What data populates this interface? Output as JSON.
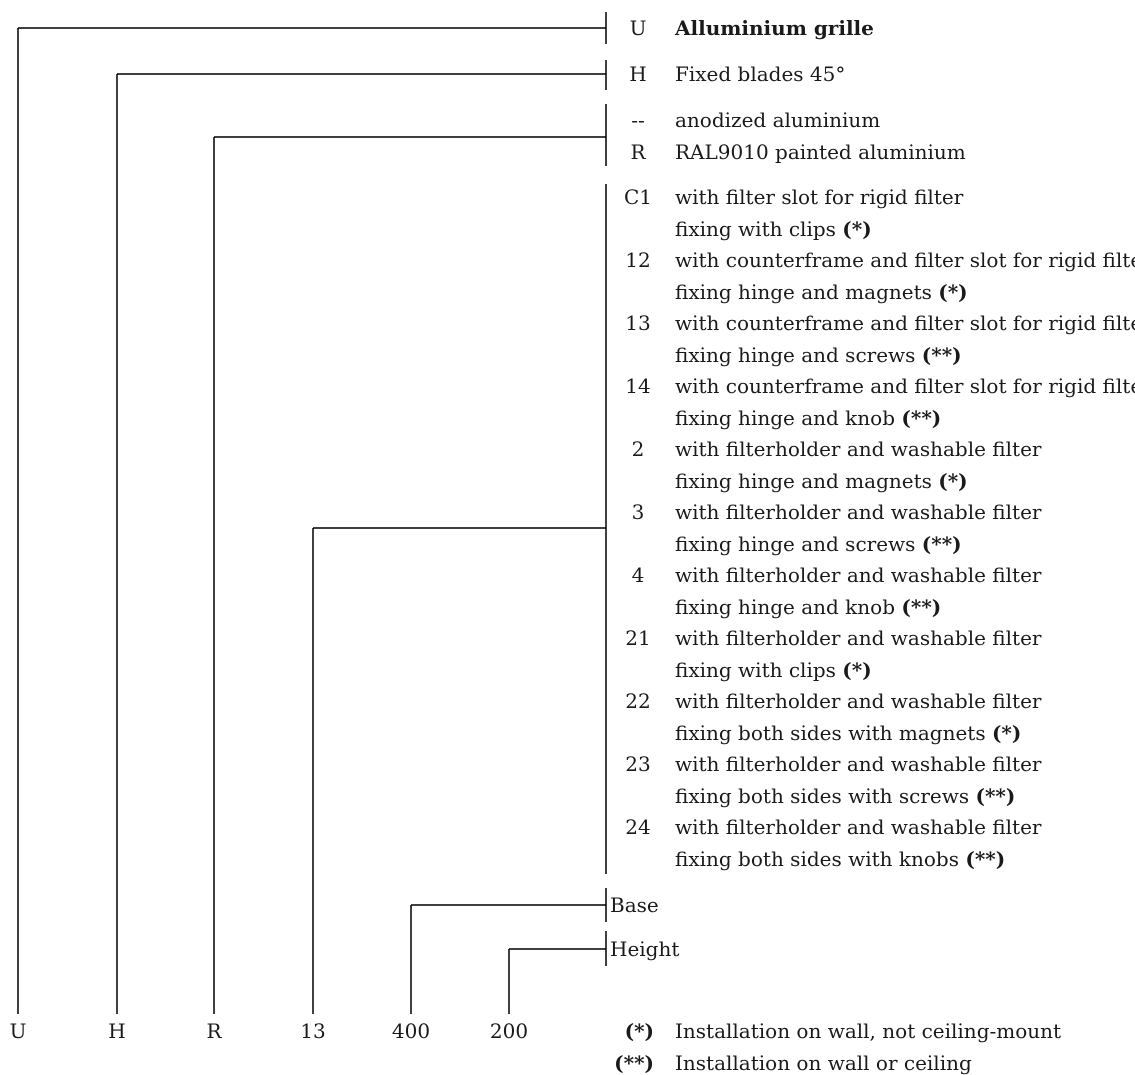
{
  "groups": [
    {
      "name": "type",
      "code_value": "U",
      "options": [
        {
          "code": "U",
          "lines": [
            "Alluminium grille"
          ],
          "bold": true
        }
      ]
    },
    {
      "name": "blades",
      "code_value": "H",
      "options": [
        {
          "code": "H",
          "lines": [
            "Fixed blades 45°"
          ]
        }
      ]
    },
    {
      "name": "finish",
      "code_value": "R",
      "options": [
        {
          "code": "--",
          "lines": [
            "anodized aluminium"
          ]
        },
        {
          "code": "R",
          "lines": [
            "RAL9010 painted aluminium"
          ]
        }
      ]
    },
    {
      "name": "filter",
      "code_value": "13",
      "options": [
        {
          "code": "C1",
          "lines": [
            "with filter slot for rigid filter",
            "fixing with clips (*)"
          ]
        },
        {
          "code": "12",
          "lines": [
            "with counterframe and filter slot for rigid filter",
            "fixing hinge and magnets (*)"
          ]
        },
        {
          "code": "13",
          "lines": [
            "with counterframe and filter slot for rigid filter",
            "fixing hinge and screws (**)"
          ]
        },
        {
          "code": "14",
          "lines": [
            "with counterframe and filter slot for rigid filter",
            "fixing hinge and knob (**)"
          ]
        },
        {
          "code": "2",
          "lines": [
            "with filterholder and washable filter",
            "fixing hinge and magnets (*)"
          ]
        },
        {
          "code": "3",
          "lines": [
            "with filterholder and washable filter",
            "fixing hinge and screws (**)"
          ]
        },
        {
          "code": "4",
          "lines": [
            "with filterholder and washable filter",
            "fixing hinge and knob (**)"
          ]
        },
        {
          "code": "21",
          "lines": [
            "with filterholder and washable filter",
            "fixing with clips (*)"
          ]
        },
        {
          "code": "22",
          "lines": [
            "with filterholder and washable filter",
            "fixing both sides with magnets (*)"
          ]
        },
        {
          "code": "23",
          "lines": [
            "with filterholder and washable filter",
            "fixing both sides with screws (**)"
          ]
        },
        {
          "code": "24",
          "lines": [
            "with filterholder and washable filter",
            "fixing both sides with knobs (**)"
          ]
        }
      ]
    },
    {
      "name": "base",
      "code_value": "400",
      "label": "Base"
    },
    {
      "name": "height",
      "code_value": "200",
      "label": "Height"
    }
  ],
  "notes": [
    {
      "symbol": "(*)",
      "text": "Installation on wall, not ceiling-mount"
    },
    {
      "symbol": "(**)",
      "text": "Installation on wall or ceiling"
    }
  ],
  "colors": {
    "ink": "#1a1a1a",
    "line": "#000000"
  }
}
